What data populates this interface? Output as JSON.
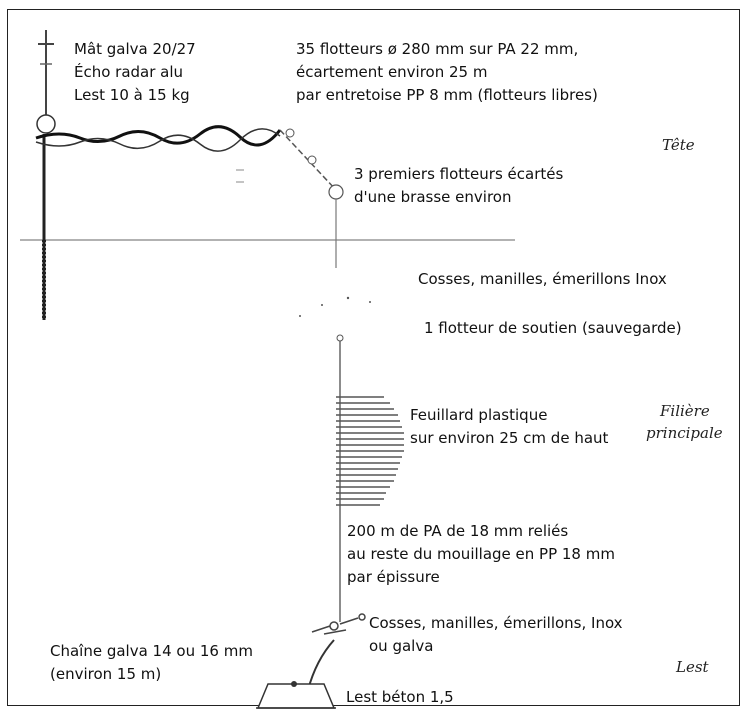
{
  "labels": {
    "mat": [
      "Mât galva 20/27",
      "Écho radar alu",
      "Lest 10 à 15 kg"
    ],
    "flotteurs": [
      "35 flotteurs ø 280 mm sur PA 22 mm,",
      "écartement environ 25 m",
      "par entretoise PP 8 mm (flotteurs libres)"
    ],
    "premiers": [
      "3 premiers flotteurs écartés",
      "d'une brasse environ"
    ],
    "cosses1": "Cosses, manilles, émerillons Inox",
    "soutien": "1 flotteur de soutien (sauvegarde)",
    "feuillard": [
      "Feuillard plastique",
      "sur environ 25 cm de haut"
    ],
    "filiere": [
      "200 m de PA de 18 mm reliés",
      "au reste du mouillage en PP 18 mm",
      "par épissure"
    ],
    "cosses2": [
      "Cosses, manilles, émerillons, Inox",
      "ou galva"
    ],
    "chaine": [
      "Chaîne galva 14 ou 16 mm",
      "(environ 15 m)"
    ],
    "lest_beton": "Lest béton 1,5"
  },
  "sections": {
    "tete": "Tête",
    "filiere": [
      "Filière",
      "principale"
    ],
    "lest": "Lest"
  }
}
